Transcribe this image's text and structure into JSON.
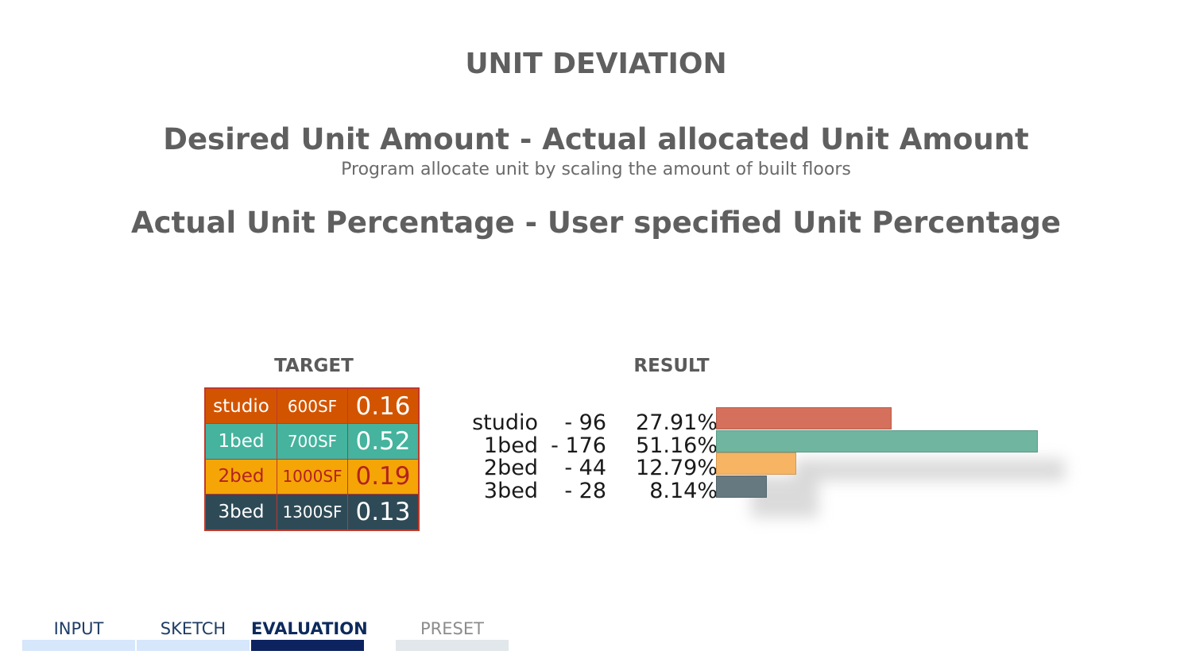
{
  "title": "UNIT DEVIATION",
  "formula_1": "Desired Unit Amount - Actual allocated Unit Amount",
  "note": "Program allocate unit by scaling the amount of built floors",
  "formula_2": "Actual Unit Percentage - User specified Unit Percentage",
  "target": {
    "label": "TARGET",
    "rows": [
      {
        "type": "studio",
        "size": "600SF",
        "ratio": "0.16",
        "color": "#d35400",
        "text_color": "#ffffff"
      },
      {
        "type": "1bed",
        "size": "700SF",
        "ratio": "0.52",
        "color": "#45b39d",
        "text_color": "#ffffff"
      },
      {
        "type": "2bed",
        "size": "1000SF",
        "ratio": "0.19",
        "color": "#f5a506",
        "text_color": "#b22222"
      },
      {
        "type": "3bed",
        "size": "1300SF",
        "ratio": "0.13",
        "color": "#2e4a57",
        "text_color": "#ffffff"
      }
    ]
  },
  "result": {
    "label": "RESULT",
    "rows": [
      {
        "type": "studio",
        "count": "- 96",
        "percent": "27.91%",
        "value": 27.91,
        "color": "#d4705c"
      },
      {
        "type": "1bed",
        "count": "- 176",
        "percent": "51.16%",
        "value": 51.16,
        "color": "#6fb5a0"
      },
      {
        "type": "2bed",
        "count": "- 44",
        "percent": "12.79%",
        "value": 12.79,
        "color": "#f7b463"
      },
      {
        "type": "3bed",
        "count": "- 28",
        "percent": "8.14%",
        "value": 8.14,
        "color": "#667980"
      }
    ]
  },
  "nav": {
    "tabs": [
      {
        "label": "INPUT",
        "state": "done",
        "text_color": "#1f3d66",
        "bar_color": "#d6e6fb"
      },
      {
        "label": "SKETCH",
        "state": "done",
        "text_color": "#1f3d66",
        "bar_color": "#d6e6fb"
      },
      {
        "label": "EVALUATION",
        "state": "active",
        "text_color": "#0d2a5c",
        "bar_color": "#0d2360"
      },
      {
        "label": "PRESET",
        "state": "inactive",
        "text_color": "#8c8c8c",
        "bar_color": "#e1e7ea"
      }
    ]
  }
}
